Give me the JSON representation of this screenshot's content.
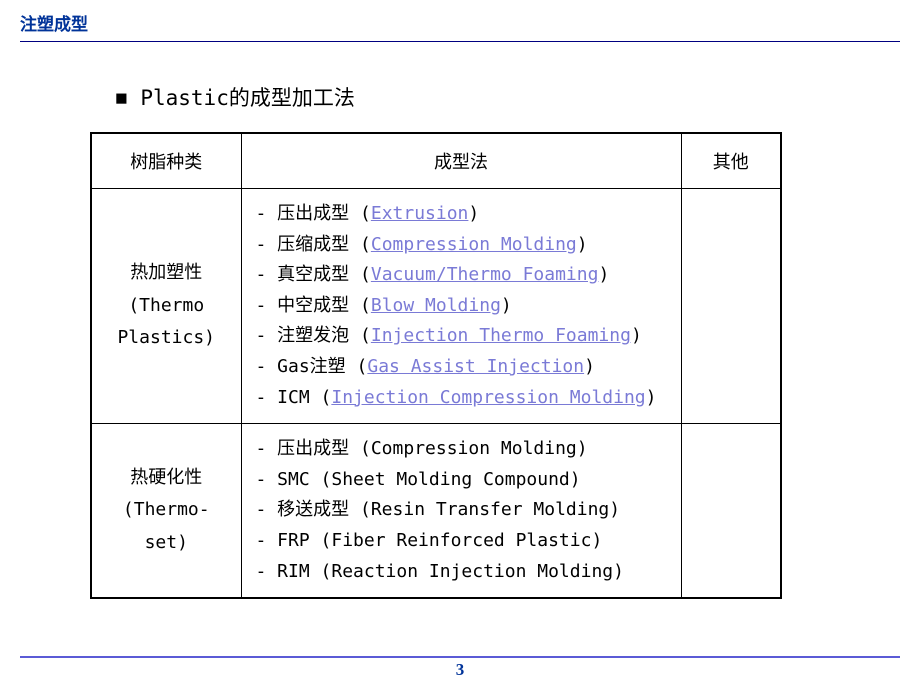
{
  "header": {
    "title": "注塑成型"
  },
  "section": {
    "bullet": "■",
    "heading": "Plastic的成型加工法"
  },
  "table": {
    "headers": {
      "col1": "树脂种类",
      "col2": "成型法",
      "col3": "其他"
    },
    "rows": [
      {
        "category_lines": [
          "热加塑性",
          "(Thermo",
          "Plastics)"
        ],
        "methods": [
          {
            "prefix": "- 压出成型 (",
            "link": "Extrusion",
            "is_link": true,
            "suffix": ")"
          },
          {
            "prefix": "- 压缩成型 (",
            "link": "Compression Molding",
            "is_link": true,
            "suffix": ")"
          },
          {
            "prefix": "- 真空成型 (",
            "link": "Vacuum/Thermo Foaming",
            "is_link": true,
            "suffix": ")"
          },
          {
            "prefix": "- 中空成型 (",
            "link": "Blow Molding",
            "is_link": true,
            "suffix": ")"
          },
          {
            "prefix": "- 注塑发泡 (",
            "link": "Injection Thermo Foaming",
            "is_link": true,
            "suffix": ")"
          },
          {
            "prefix": "- Gas注塑 (",
            "link": "Gas Assist  Injection",
            "is_link": true,
            "suffix": ")"
          },
          {
            "prefix": "- ICM (",
            "link": "Injection Compression Molding",
            "is_link": true,
            "suffix": ")"
          }
        ],
        "other": ""
      },
      {
        "category_lines": [
          "热硬化性",
          "(Thermo-set)"
        ],
        "methods": [
          {
            "prefix": "- 压出成型 (Compression Molding)",
            "link": "",
            "is_link": false,
            "suffix": ""
          },
          {
            "prefix": "- SMC (Sheet Molding Compound)",
            "link": "",
            "is_link": false,
            "suffix": ""
          },
          {
            "prefix": "- 移送成型 (Resin Transfer Molding)",
            "link": "",
            "is_link": false,
            "suffix": ""
          },
          {
            "prefix": "- FRP (Fiber Reinforced Plastic)",
            "link": "",
            "is_link": false,
            "suffix": ""
          },
          {
            "prefix": "- RIM (Reaction Injection Molding)",
            "link": "",
            "is_link": false,
            "suffix": ""
          }
        ],
        "other": ""
      }
    ]
  },
  "footer": {
    "page_number": "3"
  },
  "colors": {
    "header_title": "#003399",
    "header_divider": "#000080",
    "link": "#7a7ad6",
    "footer_divider": "#5b5bd6",
    "page_number": "#003399",
    "table_border": "#000000",
    "text": "#000000",
    "background": "#ffffff"
  }
}
